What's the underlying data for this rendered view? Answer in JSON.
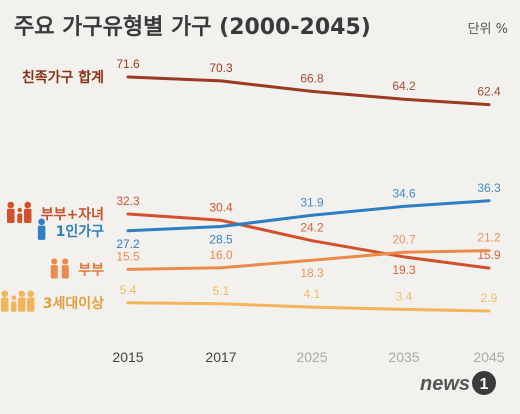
{
  "title": "주요 가구유형별 가구 (2000-2045)",
  "unit_label": "단위 %",
  "logo": {
    "text": "news",
    "mark": "1"
  },
  "colors": {
    "background": "#f3f1ee",
    "projection_tick": "#a9a9a9",
    "actual_tick": "#444444"
  },
  "chart_data": {
    "type": "line",
    "title": "주요 가구유형별 가구 (2000-2045)",
    "unit": "단위 %",
    "x": [
      "2015",
      "2017",
      "2025",
      "2035",
      "2045"
    ],
    "projected_from_index": 2,
    "ylim": [
      0,
      80
    ],
    "grid": false,
    "series": [
      {
        "name": "친족가구 합계",
        "values": [
          71.6,
          70.3,
          66.8,
          64.2,
          62.4
        ],
        "color": "#9a3a22",
        "label_color": "#8a3219",
        "icon": ""
      },
      {
        "name": "부부+자녀",
        "values": [
          32.3,
          30.4,
          24.2,
          19.3,
          15.9
        ],
        "color": "#d2502c",
        "label_color": "#c8502e",
        "icon": "couple-with-child-icon"
      },
      {
        "name": "1인가구",
        "values": [
          27.2,
          28.5,
          31.9,
          34.6,
          36.3
        ],
        "color": "#2e7fc1",
        "label_color": "#2e7fc1",
        "icon": "single-person-icon"
      },
      {
        "name": "부부",
        "values": [
          15.5,
          16.0,
          18.3,
          20.7,
          21.2
        ],
        "color": "#ec8a4c",
        "label_color": "#e07a3e",
        "icon": "couple-icon"
      },
      {
        "name": "3세대이상",
        "values": [
          5.4,
          5.1,
          4.1,
          3.4,
          2.9
        ],
        "color": "#f3b55c",
        "label_color": "#e3a040",
        "icon": "three-generation-icon"
      }
    ]
  }
}
